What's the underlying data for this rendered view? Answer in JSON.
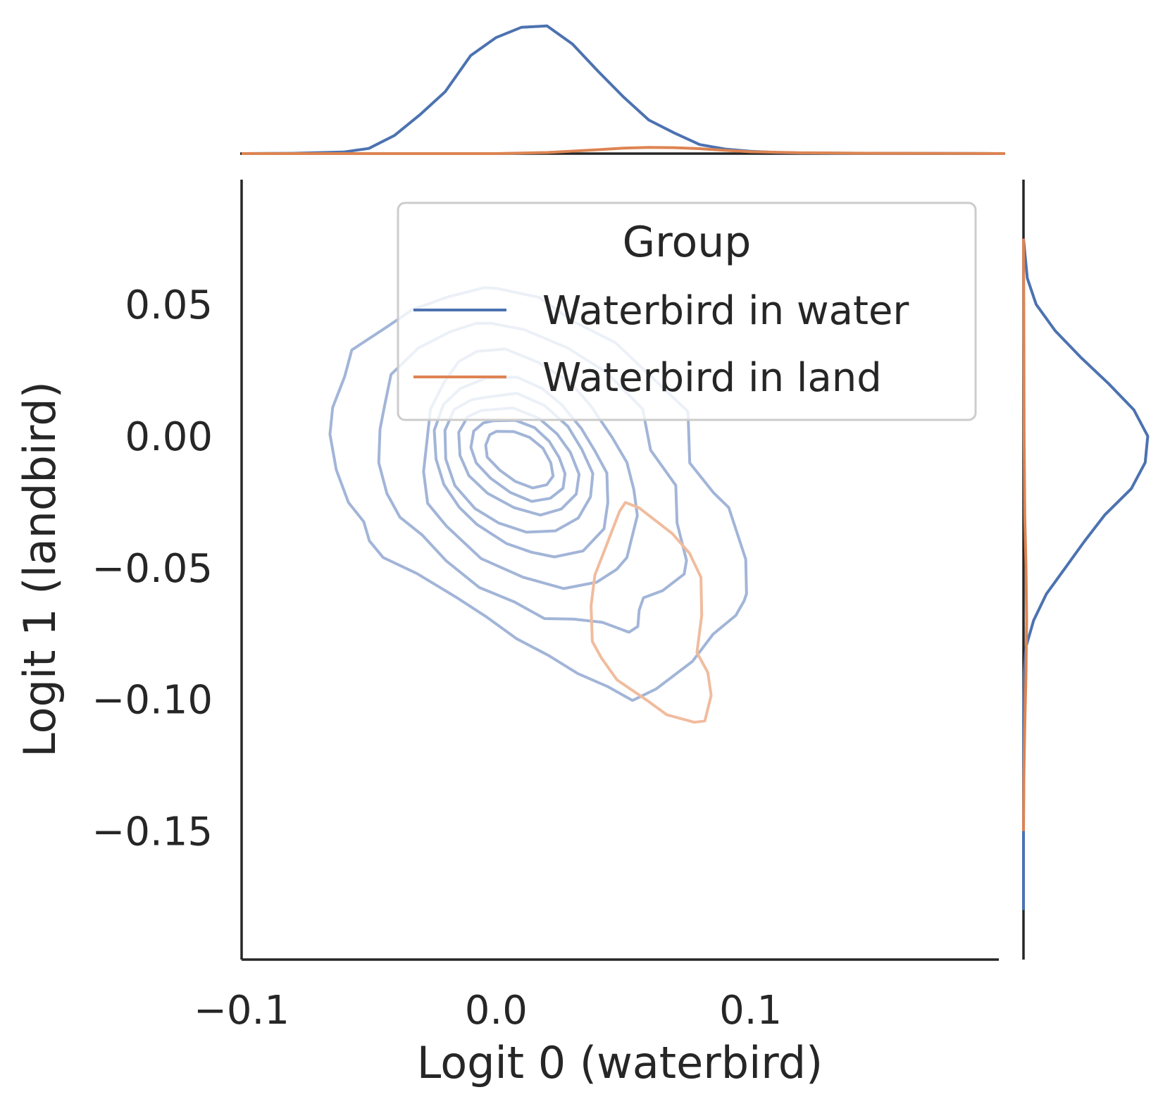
{
  "chart_data": {
    "type": "kde-joint",
    "xlabel": "Logit 0 (waterbird)",
    "ylabel": "Logit 1 (landbird)",
    "xlim": [
      -0.1,
      0.2
    ],
    "ylim": [
      -0.195,
      0.1
    ],
    "xticks": [
      {
        "value": -0.1,
        "label": "−0.1"
      },
      {
        "value": 0.0,
        "label": "0.0"
      },
      {
        "value": 0.1,
        "label": "0.1"
      }
    ],
    "yticks": [
      {
        "value": 0.05,
        "label": "0.05"
      },
      {
        "value": 0.0,
        "label": "0.00"
      },
      {
        "value": -0.05,
        "label": "−0.05"
      },
      {
        "value": -0.1,
        "label": "−0.10"
      },
      {
        "value": -0.15,
        "label": "−0.15"
      }
    ],
    "grid": false,
    "legend": {
      "title": "Group",
      "placement": "top-right"
    },
    "series": [
      {
        "name": "Waterbird in water",
        "color": "#4c72b0",
        "contour_color": "#a2b5d8",
        "contours": [
          [
            [
              0.0004,
              0.0561
            ],
            [
              0.0169,
              0.0527
            ],
            [
              0.0303,
              0.0436
            ],
            [
              0.0469,
              0.0355
            ],
            [
              0.0641,
              0.0197
            ],
            [
              0.0754,
              0.0093
            ],
            [
              0.0761,
              -0.0102
            ],
            [
              0.0854,
              -0.0215
            ],
            [
              0.0914,
              -0.0271
            ],
            [
              0.0951,
              -0.038
            ],
            [
              0.0981,
              -0.0468
            ],
            [
              0.0984,
              -0.0599
            ],
            [
              0.0974,
              -0.0627
            ],
            [
              0.0942,
              -0.0681
            ],
            [
              0.0853,
              -0.0752
            ],
            [
              0.0771,
              -0.0856
            ],
            [
              0.0629,
              -0.096
            ],
            [
              0.0536,
              -0.1004
            ],
            [
              0.051,
              -0.099
            ],
            [
              0.0438,
              -0.0951
            ],
            [
              0.0321,
              -0.0902
            ],
            [
              0.0206,
              -0.0833
            ],
            [
              0.0081,
              -0.077
            ],
            [
              -0.0036,
              -0.0688
            ],
            [
              -0.0152,
              -0.0615
            ],
            [
              -0.0311,
              -0.0522
            ],
            [
              -0.0444,
              -0.0461
            ],
            [
              -0.0498,
              -0.0398
            ],
            [
              -0.052,
              -0.0325
            ],
            [
              -0.058,
              -0.0252
            ],
            [
              -0.0628,
              -0.0128
            ],
            [
              -0.0653,
              0.0007
            ],
            [
              -0.0642,
              0.0109
            ],
            [
              -0.0595,
              0.0226
            ],
            [
              -0.0567,
              0.0327
            ],
            [
              -0.0512,
              0.0362
            ],
            [
              -0.0435,
              0.0411
            ],
            [
              -0.0328,
              0.0481
            ],
            [
              -0.0188,
              0.0529
            ],
            [
              -0.0045,
              0.0564
            ],
            [
              0.0004,
              0.0561
            ]
          ],
          [
            [
              -0.0023,
              0.0429
            ],
            [
              0.0109,
              0.0405
            ],
            [
              0.0281,
              0.0335
            ],
            [
              0.0434,
              0.0242
            ],
            [
              0.0576,
              0.0103
            ],
            [
              0.0607,
              -0.0053
            ],
            [
              0.0706,
              -0.0187
            ],
            [
              0.0711,
              -0.033
            ],
            [
              0.0748,
              -0.0472
            ],
            [
              0.0739,
              -0.0524
            ],
            [
              0.0654,
              -0.0587
            ],
            [
              0.0579,
              -0.0614
            ],
            [
              0.0562,
              -0.0661
            ],
            [
              0.0557,
              -0.0723
            ],
            [
              0.0522,
              -0.0745
            ],
            [
              0.0417,
              -0.0707
            ],
            [
              0.0304,
              -0.0695
            ],
            [
              0.019,
              -0.0693
            ],
            [
              0.0072,
              -0.063
            ],
            [
              -0.0066,
              -0.0575
            ],
            [
              -0.0196,
              -0.0474
            ],
            [
              -0.029,
              -0.0376
            ],
            [
              -0.0378,
              -0.0308
            ],
            [
              -0.0429,
              -0.0218
            ],
            [
              -0.0461,
              -0.0101
            ],
            [
              -0.0456,
              0.0026
            ],
            [
              -0.0439,
              0.0112
            ],
            [
              -0.0413,
              0.0234
            ],
            [
              -0.0306,
              0.0334
            ],
            [
              -0.0184,
              0.0395
            ],
            [
              -0.0081,
              0.0428
            ],
            [
              -0.0023,
              0.0429
            ]
          ],
          [
            [
              -0.0075,
              0.0322
            ],
            [
              0.0036,
              0.0331
            ],
            [
              0.0166,
              0.028
            ],
            [
              0.0296,
              0.02
            ],
            [
              0.0372,
              0.0115
            ],
            [
              0.0456,
              -0.0005
            ],
            [
              0.0514,
              -0.01
            ],
            [
              0.0541,
              -0.0203
            ],
            [
              0.0555,
              -0.0302
            ],
            [
              0.0514,
              -0.0461
            ],
            [
              0.0474,
              -0.0506
            ],
            [
              0.0395,
              -0.0555
            ],
            [
              0.0266,
              -0.0579
            ],
            [
              0.0106,
              -0.0536
            ],
            [
              -0.0059,
              -0.0465
            ],
            [
              -0.0196,
              -0.0341
            ],
            [
              -0.0269,
              -0.0255
            ],
            [
              -0.0285,
              -0.0135
            ],
            [
              -0.027,
              -0.0005
            ],
            [
              -0.0258,
              0.0102
            ],
            [
              -0.0204,
              0.0205
            ],
            [
              -0.0147,
              0.0283
            ],
            [
              -0.0075,
              0.0322
            ]
          ],
          [
            [
              -0.004,
              0.022
            ],
            [
              0.0082,
              0.0224
            ],
            [
              0.0182,
              0.018
            ],
            [
              0.0258,
              0.0119
            ],
            [
              0.0335,
              0.0029
            ],
            [
              0.0388,
              -0.0056
            ],
            [
              0.0435,
              -0.014
            ],
            [
              0.0439,
              -0.0253
            ],
            [
              0.0424,
              -0.0352
            ],
            [
              0.0342,
              -0.0436
            ],
            [
              0.0229,
              -0.0459
            ],
            [
              0.0139,
              -0.0441
            ],
            [
              0.0041,
              -0.0408
            ],
            [
              -0.0076,
              -0.0335
            ],
            [
              -0.0145,
              -0.027
            ],
            [
              -0.0205,
              -0.0184
            ],
            [
              -0.0236,
              -0.0087
            ],
            [
              -0.0243,
              0.0022
            ],
            [
              -0.0207,
              0.012
            ],
            [
              -0.0141,
              0.0181
            ],
            [
              -0.004,
              0.022
            ]
          ],
          [
            [
              -0.0035,
              0.0148
            ],
            [
              0.0081,
              0.0163
            ],
            [
              0.0191,
              0.0116
            ],
            [
              0.0282,
              0.0037
            ],
            [
              0.0337,
              -0.0051
            ],
            [
              0.038,
              -0.0142
            ],
            [
              0.0371,
              -0.0231
            ],
            [
              0.0323,
              -0.0311
            ],
            [
              0.0233,
              -0.036
            ],
            [
              0.0119,
              -0.0365
            ],
            [
              0.001,
              -0.033
            ],
            [
              -0.0083,
              -0.0275
            ],
            [
              -0.0162,
              -0.0188
            ],
            [
              -0.0198,
              -0.0087
            ],
            [
              -0.0201,
              0.0022
            ],
            [
              -0.0165,
              0.0101
            ],
            [
              -0.0095,
              0.0139
            ],
            [
              -0.0035,
              0.0148
            ]
          ],
          [
            [
              -0.0022,
              0.01
            ],
            [
              0.0067,
              0.0107
            ],
            [
              0.0168,
              0.0068
            ],
            [
              0.024,
              0.0008
            ],
            [
              0.0292,
              -0.0062
            ],
            [
              0.0326,
              -0.0145
            ],
            [
              0.0315,
              -0.022
            ],
            [
              0.0256,
              -0.0277
            ],
            [
              0.0174,
              -0.03
            ],
            [
              0.0071,
              -0.0272
            ],
            [
              -0.0034,
              -0.0217
            ],
            [
              -0.0107,
              -0.015
            ],
            [
              -0.0142,
              -0.0073
            ],
            [
              -0.0147,
              0.0014
            ],
            [
              -0.0112,
              0.0073
            ],
            [
              -0.006,
              0.0097
            ],
            [
              -0.0022,
              0.01
            ]
          ],
          [
            [
              -0.0012,
              0.0058
            ],
            [
              0.0076,
              0.006
            ],
            [
              0.0151,
              0.0032
            ],
            [
              0.0209,
              -0.002
            ],
            [
              0.0248,
              -0.0082
            ],
            [
              0.0271,
              -0.0143
            ],
            [
              0.0263,
              -0.0198
            ],
            [
              0.0213,
              -0.0236
            ],
            [
              0.014,
              -0.0248
            ],
            [
              0.0056,
              -0.0214
            ],
            [
              -0.0022,
              -0.016
            ],
            [
              -0.0078,
              -0.0102
            ],
            [
              -0.0099,
              -0.0043
            ],
            [
              -0.0088,
              0.0019
            ],
            [
              -0.005,
              0.005
            ],
            [
              -0.0012,
              0.0058
            ]
          ],
          [
            [
              0.0001,
              0.0018
            ],
            [
              0.007,
              0.0017
            ],
            [
              0.0132,
              -0.0005
            ],
            [
              0.0184,
              -0.0046
            ],
            [
              0.0215,
              -0.0102
            ],
            [
              0.0224,
              -0.0152
            ],
            [
              0.0199,
              -0.0185
            ],
            [
              0.0144,
              -0.0197
            ],
            [
              0.0075,
              -0.0172
            ],
            [
              0.0014,
              -0.0129
            ],
            [
              -0.0035,
              -0.008
            ],
            [
              -0.0041,
              -0.0035
            ],
            [
              -0.0025,
              0.0005
            ],
            [
              0.0001,
              0.0018
            ]
          ]
        ],
        "marginal_x": {
          "x": [
            -0.1,
            -0.08,
            -0.06,
            -0.05,
            -0.04,
            -0.03,
            -0.02,
            -0.01,
            0.0,
            0.01,
            0.02,
            0.03,
            0.04,
            0.05,
            0.06,
            0.07,
            0.08,
            0.09,
            0.1,
            0.11,
            0.12,
            0.14,
            0.16,
            0.18,
            0.2
          ],
          "density": [
            0.0,
            0.002,
            0.012,
            0.04,
            0.14,
            0.3,
            0.48,
            0.76,
            0.9,
            0.98,
            0.99,
            0.85,
            0.64,
            0.44,
            0.26,
            0.16,
            0.07,
            0.035,
            0.018,
            0.009,
            0.005,
            0.003,
            0.002,
            0.001,
            0.0
          ]
        },
        "marginal_y": {
          "y": [
            0.075,
            0.06,
            0.05,
            0.04,
            0.03,
            0.02,
            0.01,
            0.0,
            -0.01,
            -0.02,
            -0.03,
            -0.04,
            -0.05,
            -0.06,
            -0.07,
            -0.08,
            -0.09,
            -0.1,
            -0.11,
            -0.12,
            -0.15,
            -0.18
          ],
          "density": [
            0.0,
            0.03,
            0.1,
            0.25,
            0.45,
            0.67,
            0.87,
            0.98,
            0.96,
            0.85,
            0.64,
            0.48,
            0.33,
            0.18,
            0.08,
            0.02,
            0.005,
            0.003,
            0.002,
            0.001,
            0.0,
            0.0
          ]
        }
      },
      {
        "name": "Waterbird in land",
        "color": "#dd8452",
        "contour_color": "#f0bc9e",
        "contours": [
          [
            [
              0.0508,
              -0.0252
            ],
            [
              0.0561,
              -0.0272
            ],
            [
              0.0693,
              -0.0371
            ],
            [
              0.076,
              -0.0445
            ],
            [
              0.0805,
              -0.0536
            ],
            [
              0.0808,
              -0.0681
            ],
            [
              0.0789,
              -0.0822
            ],
            [
              0.0832,
              -0.0898
            ],
            [
              0.0845,
              -0.0985
            ],
            [
              0.082,
              -0.1082
            ],
            [
              0.0779,
              -0.1087
            ],
            [
              0.067,
              -0.1058
            ],
            [
              0.0592,
              -0.1003
            ],
            [
              0.0475,
              -0.0926
            ],
            [
              0.0414,
              -0.0843
            ],
            [
              0.0378,
              -0.078
            ],
            [
              0.0373,
              -0.0645
            ],
            [
              0.0388,
              -0.0528
            ],
            [
              0.0436,
              -0.0409
            ],
            [
              0.0485,
              -0.0286
            ],
            [
              0.0508,
              -0.0252
            ]
          ]
        ],
        "marginal_x": {
          "x": [
            -0.1,
            0.0,
            0.02,
            0.04,
            0.05,
            0.06,
            0.07,
            0.08,
            0.09,
            0.1,
            0.12,
            0.15,
            0.2
          ],
          "density": [
            0.0,
            0.0,
            0.008,
            0.03,
            0.042,
            0.048,
            0.046,
            0.038,
            0.025,
            0.014,
            0.006,
            0.002,
            0.0
          ]
        },
        "marginal_y": {
          "y": [
            0.075,
            0.05,
            0.0,
            -0.03,
            -0.05,
            -0.07,
            -0.09,
            -0.11,
            -0.13,
            -0.15
          ],
          "density": [
            0.0,
            0.002,
            0.005,
            0.01,
            0.02,
            0.025,
            0.02,
            0.01,
            0.003,
            0.0
          ]
        }
      }
    ]
  }
}
